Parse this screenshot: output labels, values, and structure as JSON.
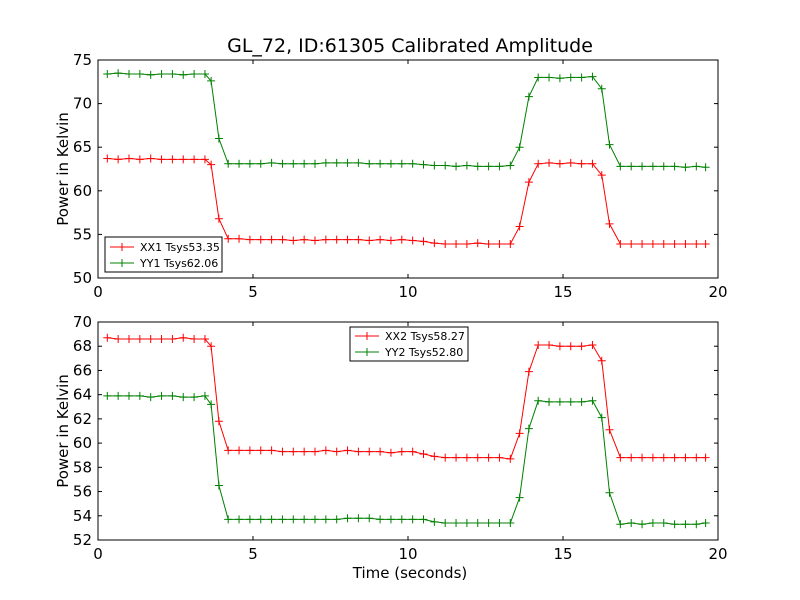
{
  "title": "GL_72, ID:61305 Calibrated Amplitude",
  "colors": {
    "red": "#ff0000",
    "green": "#008000",
    "axes": "#000000",
    "background": "#ffffff"
  },
  "chart_data": [
    {
      "type": "line",
      "title": "GL_72, ID:61305 Calibrated Amplitude",
      "xlabel": "",
      "ylabel": "Power in Kelvin",
      "xlim": [
        0,
        20
      ],
      "ylim": [
        50,
        75
      ],
      "xticks": [
        "0",
        "5",
        "10",
        "15",
        "20"
      ],
      "yticks": [
        "50",
        "55",
        "60",
        "65",
        "70",
        "75"
      ],
      "legend_position": "lower-left",
      "grid": false,
      "x": [
        0.3,
        0.65,
        1.0,
        1.35,
        1.7,
        2.05,
        2.4,
        2.75,
        3.1,
        3.45,
        3.65,
        3.9,
        4.2,
        4.55,
        4.9,
        5.25,
        5.6,
        5.95,
        6.3,
        6.65,
        7.0,
        7.35,
        7.7,
        8.05,
        8.4,
        8.75,
        9.1,
        9.45,
        9.8,
        10.15,
        10.5,
        10.85,
        11.2,
        11.55,
        11.9,
        12.25,
        12.6,
        12.95,
        13.3,
        13.6,
        13.9,
        14.2,
        14.55,
        14.9,
        15.25,
        15.6,
        15.95,
        16.25,
        16.5,
        16.85,
        17.2,
        17.55,
        17.9,
        18.25,
        18.6,
        18.95,
        19.3,
        19.6
      ],
      "series": [
        {
          "name": "XX1 Tsys53.35",
          "color": "#ff0000",
          "values": [
            63.7,
            63.6,
            63.7,
            63.6,
            63.7,
            63.6,
            63.6,
            63.6,
            63.6,
            63.6,
            63.0,
            56.8,
            54.5,
            54.5,
            54.4,
            54.4,
            54.4,
            54.4,
            54.3,
            54.4,
            54.3,
            54.4,
            54.4,
            54.4,
            54.4,
            54.3,
            54.4,
            54.3,
            54.4,
            54.3,
            54.2,
            54.0,
            53.9,
            53.9,
            53.9,
            54.0,
            53.9,
            53.9,
            53.9,
            55.9,
            61.0,
            63.1,
            63.2,
            63.1,
            63.2,
            63.1,
            63.1,
            61.8,
            56.2,
            53.9,
            53.9,
            53.9,
            53.9,
            53.9,
            53.9,
            53.9,
            53.9,
            53.9
          ]
        },
        {
          "name": "YY1 Tsys62.06",
          "color": "#008000",
          "values": [
            73.4,
            73.5,
            73.4,
            73.4,
            73.3,
            73.4,
            73.4,
            73.3,
            73.4,
            73.4,
            72.6,
            66.0,
            63.1,
            63.1,
            63.1,
            63.1,
            63.2,
            63.1,
            63.1,
            63.1,
            63.1,
            63.2,
            63.2,
            63.2,
            63.2,
            63.1,
            63.1,
            63.1,
            63.1,
            63.1,
            63.0,
            62.9,
            62.9,
            62.8,
            62.9,
            62.8,
            62.8,
            62.8,
            62.9,
            65.0,
            70.8,
            73.0,
            73.0,
            72.9,
            73.0,
            73.0,
            73.1,
            71.7,
            65.3,
            62.8,
            62.8,
            62.8,
            62.8,
            62.8,
            62.8,
            62.7,
            62.8,
            62.7
          ]
        }
      ]
    },
    {
      "type": "line",
      "title": "",
      "xlabel": "Time (seconds)",
      "ylabel": "Power in Kelvin",
      "xlim": [
        0,
        20
      ],
      "ylim": [
        52,
        70
      ],
      "xticks": [
        "0",
        "5",
        "10",
        "15",
        "20"
      ],
      "yticks": [
        "52",
        "54",
        "56",
        "58",
        "60",
        "62",
        "64",
        "66",
        "68",
        "70"
      ],
      "legend_position": "upper-center",
      "grid": false,
      "x": [
        0.3,
        0.65,
        1.0,
        1.35,
        1.7,
        2.05,
        2.4,
        2.75,
        3.1,
        3.45,
        3.65,
        3.9,
        4.2,
        4.55,
        4.9,
        5.25,
        5.6,
        5.95,
        6.3,
        6.65,
        7.0,
        7.35,
        7.7,
        8.05,
        8.4,
        8.75,
        9.1,
        9.45,
        9.8,
        10.15,
        10.5,
        10.85,
        11.2,
        11.55,
        11.9,
        12.25,
        12.6,
        12.95,
        13.3,
        13.6,
        13.9,
        14.2,
        14.55,
        14.9,
        15.25,
        15.6,
        15.95,
        16.25,
        16.5,
        16.85,
        17.2,
        17.55,
        17.9,
        18.25,
        18.6,
        18.95,
        19.3,
        19.6
      ],
      "series": [
        {
          "name": "XX2 Tsys58.27",
          "color": "#ff0000",
          "values": [
            68.7,
            68.6,
            68.6,
            68.6,
            68.6,
            68.6,
            68.6,
            68.7,
            68.6,
            68.6,
            68.0,
            61.8,
            59.4,
            59.4,
            59.4,
            59.4,
            59.4,
            59.3,
            59.3,
            59.3,
            59.3,
            59.4,
            59.3,
            59.4,
            59.3,
            59.3,
            59.3,
            59.2,
            59.3,
            59.3,
            59.1,
            58.9,
            58.8,
            58.8,
            58.8,
            58.8,
            58.8,
            58.8,
            58.7,
            60.8,
            65.9,
            68.1,
            68.1,
            68.0,
            68.0,
            68.0,
            68.1,
            66.8,
            61.1,
            58.8,
            58.8,
            58.8,
            58.8,
            58.8,
            58.8,
            58.8,
            58.8,
            58.8
          ]
        },
        {
          "name": "YY2 Tsys52.80",
          "color": "#008000",
          "values": [
            63.9,
            63.9,
            63.9,
            63.9,
            63.8,
            63.9,
            63.9,
            63.8,
            63.8,
            63.9,
            63.2,
            56.5,
            53.7,
            53.7,
            53.7,
            53.7,
            53.7,
            53.7,
            53.7,
            53.7,
            53.7,
            53.7,
            53.7,
            53.8,
            53.8,
            53.8,
            53.7,
            53.7,
            53.7,
            53.7,
            53.7,
            53.5,
            53.4,
            53.4,
            53.4,
            53.4,
            53.4,
            53.4,
            53.4,
            55.5,
            61.2,
            63.5,
            63.4,
            63.4,
            63.4,
            63.4,
            63.5,
            62.1,
            55.9,
            53.3,
            53.4,
            53.3,
            53.4,
            53.4,
            53.3,
            53.3,
            53.3,
            53.4
          ]
        }
      ]
    }
  ]
}
